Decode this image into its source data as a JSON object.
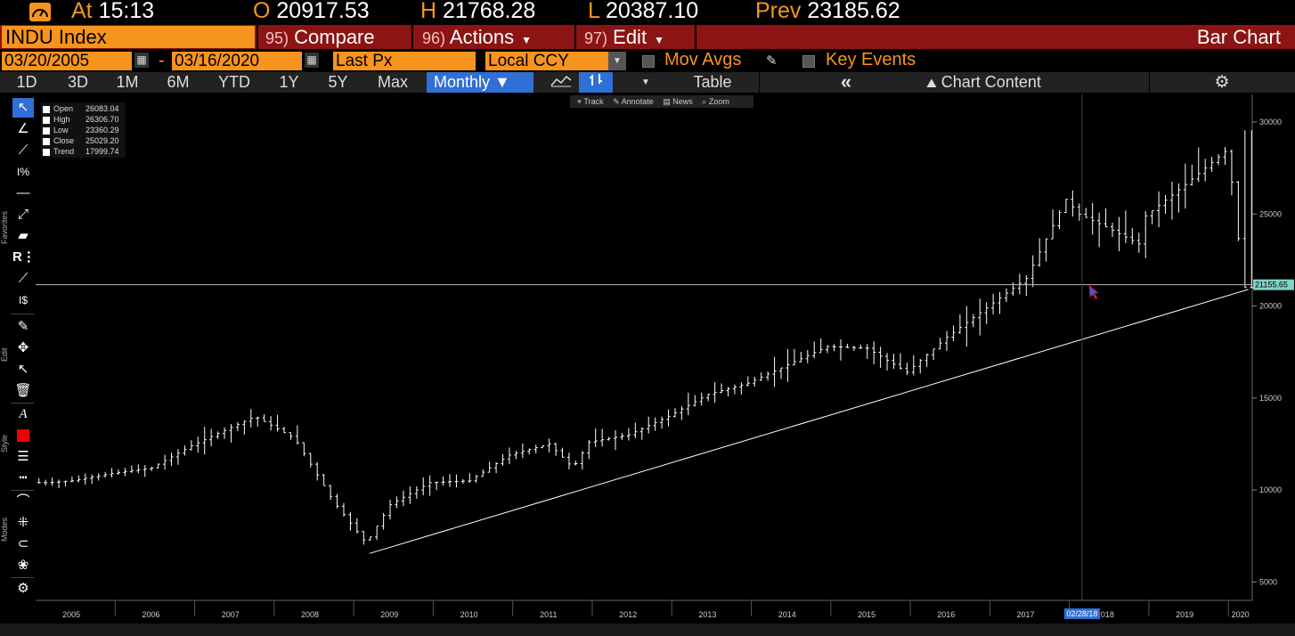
{
  "quote": {
    "at_label": "At",
    "time": "15:13",
    "open_label": "O",
    "open": "20917.53",
    "high_label": "H",
    "high": "21768.28",
    "low_label": "L",
    "low": "20387.10",
    "prev_label": "Prev",
    "prev": "23185.62"
  },
  "security": {
    "ticker": "INDU Index",
    "compare_num": "95)",
    "compare": "Compare",
    "actions_num": "96)",
    "actions": "Actions",
    "edit_num": "97)",
    "edit": "Edit",
    "chart_type": "Bar Chart"
  },
  "params": {
    "start_date": "03/20/2005",
    "dash": "-",
    "end_date": "03/16/2020",
    "field": "Last Px",
    "currency": "Local CCY",
    "mov_avgs": "Mov Avgs",
    "key_events": "Key Events"
  },
  "periods": [
    "1D",
    "3D",
    "1M",
    "6M",
    "YTD",
    "1Y",
    "5Y",
    "Max"
  ],
  "frequency": "Monthly",
  "table_label": "Table",
  "chart_content_label": "Chart Content",
  "mini_toolbar": {
    "track": "Track",
    "annotate": "Annotate",
    "news": "News",
    "zoom": "Zoom"
  },
  "toolbar_sections": {
    "favorites": "Favorites",
    "edit": "Edit",
    "style": "Style",
    "modes": "Modes"
  },
  "legend": [
    {
      "label": "Open",
      "value": "26083.04"
    },
    {
      "label": "High",
      "value": "26306.70"
    },
    {
      "label": "Low",
      "value": "23360.29"
    },
    {
      "label": "Close",
      "value": "25029.20"
    },
    {
      "label": "Trend",
      "value": "17999.74"
    }
  ],
  "colors": {
    "accent": "#f7941d",
    "header_red": "#8c1414",
    "selected_blue": "#2f6fd6",
    "crosshair_label": "#7fd3c8"
  },
  "chart_data": {
    "type": "bar",
    "frequency": "monthly",
    "x_tick_labels": [
      "2005",
      "2006",
      "2007",
      "2008",
      "2009",
      "2010",
      "2011",
      "2012",
      "2013",
      "2014",
      "2015",
      "2016",
      "2017",
      "2018",
      "2019",
      "2020"
    ],
    "y_tick_labels": [
      "5000",
      "10000",
      "15000",
      "20000",
      "25000",
      "30000"
    ],
    "ylim": [
      4000,
      31500
    ],
    "xlim": [
      2005.0,
      2020.3
    ],
    "crosshair": {
      "value_label": "21155.65",
      "date_label": "02/28/18",
      "value": 21155.65,
      "date": 2018.16
    },
    "trendline": {
      "x": [
        2009.2,
        2020.25
      ],
      "y": [
        6550,
        20900
      ]
    },
    "yearly_closes": {
      "x": [
        2005.2,
        2005.5,
        2006.0,
        2006.5,
        2007.0,
        2007.5,
        2007.8,
        2008.3,
        2008.8,
        2009.2,
        2009.5,
        2010.0,
        2010.5,
        2011.0,
        2011.5,
        2011.8,
        2012.0,
        2012.5,
        2013.0,
        2013.5,
        2014.0,
        2014.5,
        2015.0,
        2015.5,
        2016.0,
        2016.5,
        2017.0,
        2017.5,
        2018.0,
        2018.16,
        2018.5,
        2018.95,
        2019.0,
        2019.5,
        2020.0,
        2020.12,
        2020.22
      ],
      "y": [
        10400,
        10500,
        10900,
        11200,
        12400,
        13400,
        14000,
        12800,
        9300,
        7100,
        9200,
        10400,
        10500,
        11900,
        12500,
        11200,
        12600,
        13000,
        14000,
        15200,
        15800,
        16800,
        17800,
        17700,
        16400,
        18300,
        19900,
        21500,
        25800,
        25000,
        24300,
        23300,
        24900,
        26600,
        28400,
        26000,
        21000
      ]
    }
  }
}
